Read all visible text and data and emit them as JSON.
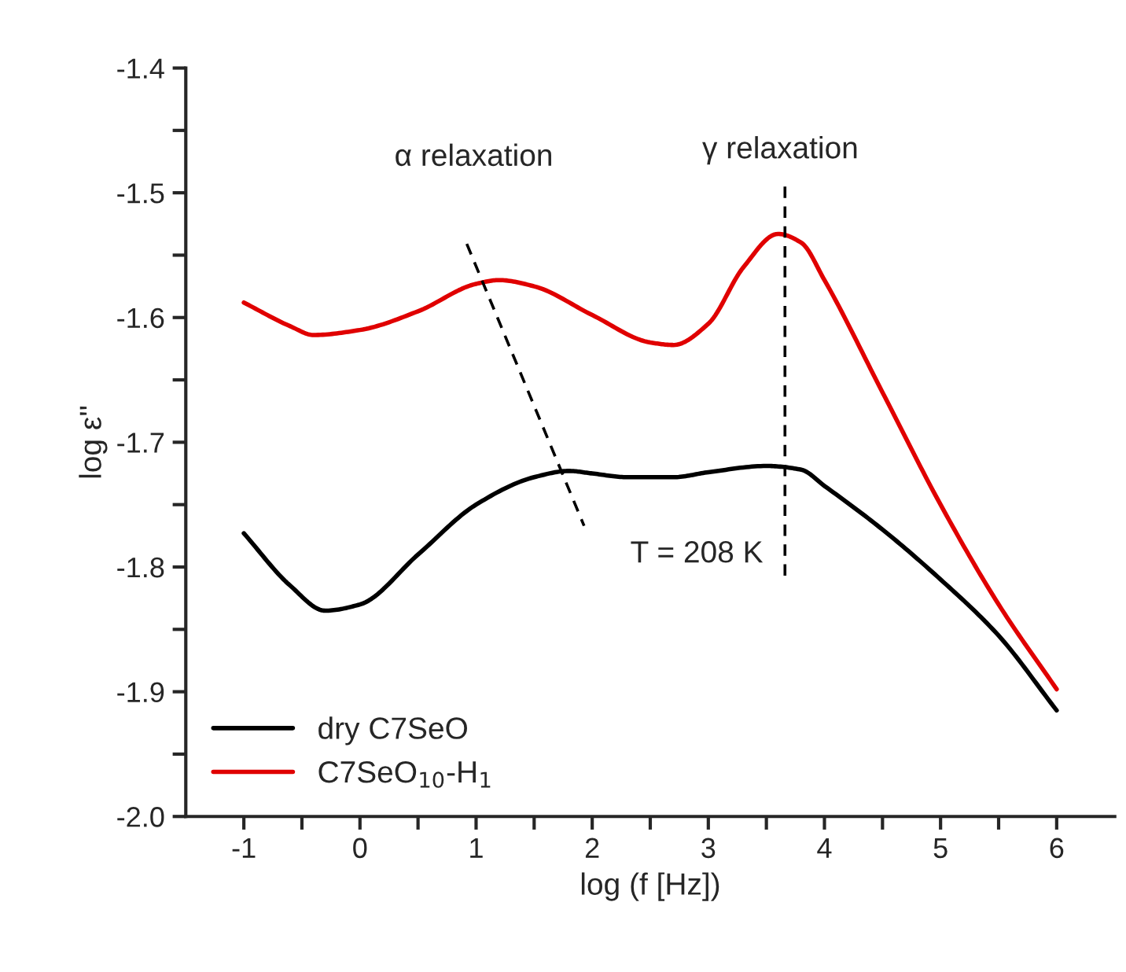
{
  "chart_data": {
    "type": "line",
    "xlabel": "log (f [Hz])",
    "ylabel": "log ε''",
    "xlim": [
      -1.5,
      6.5
    ],
    "ylim": [
      -2.0,
      -1.4
    ],
    "xticks": [
      -1,
      {
        "value": -0.5,
        "label": null
      },
      0,
      {
        "value": 0.5,
        "label": null
      },
      1,
      {
        "value": 1.5,
        "label": null
      },
      2,
      {
        "value": 2.5,
        "label": null
      },
      3,
      {
        "value": 3.5,
        "label": null
      },
      4,
      {
        "value": 4.5,
        "label": null
      },
      5,
      {
        "value": 5.5,
        "label": null
      },
      6
    ],
    "yticks": [
      {
        "value": -2.0,
        "label": "-2.0"
      },
      {
        "value": -1.95,
        "label": null
      },
      -1.9,
      {
        "value": -1.85,
        "label": null
      },
      -1.8,
      {
        "value": -1.75,
        "label": null
      },
      -1.7,
      {
        "value": -1.65,
        "label": null
      },
      -1.6,
      {
        "value": -1.55,
        "label": null
      },
      -1.5,
      {
        "value": -1.45,
        "label": null
      },
      -1.4
    ],
    "grid": false,
    "legend": "bottom left",
    "marker": "none",
    "series": [
      {
        "name": "dry C7SeO",
        "color": "#000000",
        "line_style": "solid",
        "x": [
          -1,
          -0.6,
          -0.3,
          0,
          0.5,
          1,
          1.5,
          1.8,
          2,
          2.3,
          2.7,
          3,
          3.5,
          3.8,
          4,
          4.5,
          5,
          5.5,
          6
        ],
        "values": [
          -1.773,
          -1.815,
          -1.835,
          -1.83,
          -1.79,
          -1.75,
          -1.728,
          -1.723,
          -1.725,
          -1.728,
          -1.728,
          -1.724,
          -1.719,
          -1.722,
          -1.735,
          -1.77,
          -1.81,
          -1.855,
          -1.915
        ]
      },
      {
        "name": "C7SeO$_{10}$-H$_{1}$",
        "color": "#e00000",
        "line_style": "solid",
        "x": [
          -1,
          -0.6,
          -0.4,
          0,
          0.5,
          1,
          1.2,
          1.5,
          2,
          2.5,
          2.7,
          3,
          3.3,
          3.6,
          3.8,
          4,
          4.5,
          5,
          5.5,
          6
        ],
        "values": [
          -1.588,
          -1.607,
          -1.614,
          -1.61,
          -1.595,
          -1.573,
          -1.57,
          -1.575,
          -1.598,
          -1.62,
          -1.622,
          -1.605,
          -1.56,
          -1.533,
          -1.54,
          -1.57,
          -1.66,
          -1.75,
          -1.83,
          -1.898
        ]
      },
      {
        "color": "#000000",
        "line_style": "dashed",
        "x": [
          0.92,
          1.93
        ],
        "values": [
          -1.541,
          -1.767
        ]
      },
      {
        "color": "#000000",
        "line_style": "dashed",
        "x": [
          3.66,
          3.66
        ],
        "values": [
          -1.495,
          -1.81
        ]
      }
    ],
    "annotations": [
      "α relaxation",
      "γ relaxation",
      "T = 208 K"
    ]
  }
}
